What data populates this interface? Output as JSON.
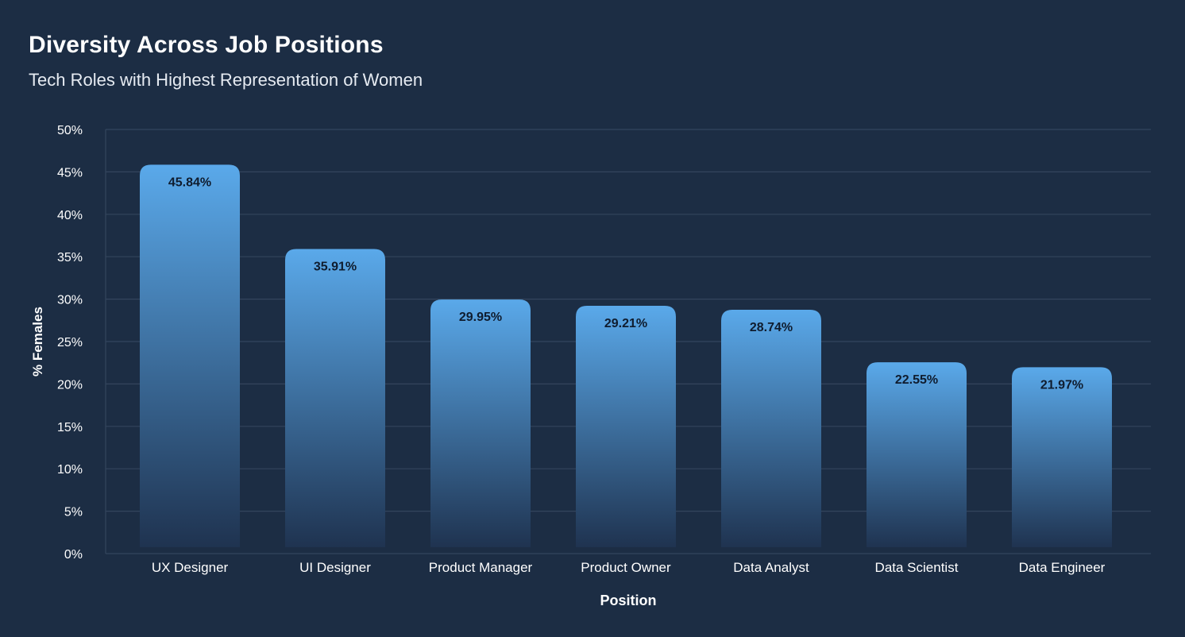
{
  "header": {
    "title": "Diversity Across Job Positions",
    "subtitle": "Tech Roles with Highest Representation of Women"
  },
  "colors": {
    "background": "#1c2d44",
    "gridline": "#33455d",
    "bar_top": "#5aa9ea",
    "bar_bottom": "#1f3350",
    "data_label": "#0f1c2e",
    "text": "#ffffff"
  },
  "chart_data": {
    "type": "bar",
    "title": "Diversity Across Job Positions",
    "subtitle": "Tech Roles with Highest Representation of Women",
    "xlabel": "Position",
    "ylabel": "% Females",
    "ylim": [
      0,
      50
    ],
    "yticks": [
      0,
      5,
      10,
      15,
      20,
      25,
      30,
      35,
      40,
      45,
      50
    ],
    "ytick_labels": [
      "0%",
      "5%",
      "10%",
      "15%",
      "20%",
      "25%",
      "30%",
      "35%",
      "40%",
      "45%",
      "50%"
    ],
    "categories": [
      "UX Designer",
      "UI Designer",
      "Product Manager",
      "Product Owner",
      "Data Analyst",
      "Data Scientist",
      "Data Engineer"
    ],
    "values": [
      45.84,
      35.91,
      29.95,
      29.21,
      28.74,
      22.55,
      21.97
    ],
    "value_labels": [
      "45.84%",
      "35.91%",
      "29.95%",
      "29.21%",
      "28.74%",
      "22.55%",
      "21.97%"
    ],
    "grid": true,
    "legend": "none"
  }
}
